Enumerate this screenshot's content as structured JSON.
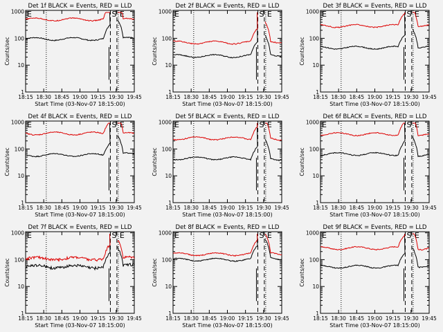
{
  "background": "#f2f2f2",
  "colors": {
    "events": "#000000",
    "lld": "#dd0000",
    "axis": "#000000"
  },
  "chart_data": [
    {
      "type": "line",
      "title": "Det 1f BLACK = Events, RED = LLD",
      "xlabel": "Start Time (03-Nov-07 18:15:00)",
      "ylabel": "Counts/sec",
      "xticks": [
        "18:15",
        "18:30",
        "18:45",
        "19:00",
        "19:15",
        "19:30",
        "19:45"
      ],
      "yticks": [
        "1",
        "10",
        "100",
        "1000"
      ],
      "yscale": "log",
      "ylim": [
        1,
        1100
      ],
      "markers": [
        "E",
        "S",
        "E"
      ],
      "series": [
        {
          "name": "BLACK = Events",
          "level_pre": 95,
          "level_post": 100
        },
        {
          "name": "RED = LLD",
          "level_pre": 510,
          "level_post": 500
        }
      ]
    },
    {
      "type": "line",
      "title": "Det 2f BLACK = Events, RED = LLD",
      "xlabel": "Start Time (03-Nov-07 18:15:00)",
      "ylabel": "Counts/sec",
      "xticks": [
        "18:15",
        "18:30",
        "18:45",
        "19:00",
        "19:15",
        "19:30",
        "19:45"
      ],
      "yticks": [
        "1",
        "10",
        "100",
        "1000"
      ],
      "yscale": "log",
      "ylim": [
        1,
        1100
      ],
      "markers": [
        "E",
        "S",
        "E"
      ],
      "series": [
        {
          "name": "BLACK = Events",
          "level_pre": 22,
          "level_post": 24
        },
        {
          "name": "RED = LLD",
          "level_pre": 70,
          "level_post": 75
        }
      ]
    },
    {
      "type": "line",
      "title": "Det 3f BLACK = Events, RED = LLD",
      "xlabel": "Start Time (03-Nov-07 18:15:00)",
      "ylabel": "Counts/sec",
      "xticks": [
        "18:15",
        "18:30",
        "18:45",
        "19:00",
        "19:15",
        "19:30",
        "19:45"
      ],
      "yticks": [
        "1",
        "10",
        "100",
        "1000"
      ],
      "yscale": "log",
      "ylim": [
        1,
        1100
      ],
      "markers": [
        "E",
        "S",
        "E"
      ],
      "series": [
        {
          "name": "BLACK = Events",
          "level_pre": 45,
          "level_post": 48
        },
        {
          "name": "RED = LLD",
          "level_pre": 290,
          "level_post": 300
        }
      ]
    },
    {
      "type": "line",
      "title": "Det 4f BLACK = Events, RED = LLD",
      "xlabel": "Start Time (03-Nov-07 18:15:00)",
      "ylabel": "Counts/sec",
      "xticks": [
        "18:15",
        "18:30",
        "18:45",
        "19:00",
        "19:15",
        "19:30",
        "19:45"
      ],
      "yticks": [
        "1",
        "10",
        "100",
        "1000"
      ],
      "yscale": "log",
      "ylim": [
        1,
        1100
      ],
      "markers": [
        "E",
        "S",
        "E"
      ],
      "series": [
        {
          "name": "BLACK = Events",
          "level_pre": 60,
          "level_post": 65
        },
        {
          "name": "RED = LLD",
          "level_pre": 380,
          "level_post": 370
        }
      ]
    },
    {
      "type": "line",
      "title": "Det 5f BLACK = Events, RED = LLD",
      "xlabel": "Start Time (03-Nov-07 18:15:00)",
      "ylabel": "Counts/sec",
      "xticks": [
        "18:15",
        "18:30",
        "18:45",
        "19:00",
        "19:15",
        "19:30",
        "19:45"
      ],
      "yticks": [
        "1",
        "10",
        "100",
        "1000"
      ],
      "yscale": "log",
      "ylim": [
        1,
        1100
      ],
      "markers": [
        "E",
        "S",
        "E"
      ],
      "series": [
        {
          "name": "BLACK = Events",
          "level_pre": 45,
          "level_post": 42
        },
        {
          "name": "RED = LLD",
          "level_pre": 250,
          "level_post": 240
        }
      ]
    },
    {
      "type": "line",
      "title": "Det 6f BLACK = Events, RED = LLD",
      "xlabel": "Start Time (03-Nov-07 18:15:00)",
      "ylabel": "Counts/sec",
      "xticks": [
        "18:15",
        "18:30",
        "18:45",
        "19:00",
        "19:15",
        "19:30",
        "19:45"
      ],
      "yticks": [
        "1",
        "10",
        "100",
        "1000"
      ],
      "yscale": "log",
      "ylim": [
        1,
        1100
      ],
      "markers": [
        "E",
        "S",
        "E"
      ],
      "series": [
        {
          "name": "BLACK = Events",
          "level_pre": 65,
          "level_post": 60
        },
        {
          "name": "RED = LLD",
          "level_pre": 360,
          "level_post": 350
        }
      ]
    },
    {
      "type": "line",
      "title": "Det 7f BLACK = Events, RED = LLD",
      "xlabel": "Start Time (03-Nov-07 18:15:00)",
      "ylabel": "Counts/sec",
      "xticks": [
        "18:15",
        "18:30",
        "18:45",
        "19:00",
        "19:15",
        "19:30",
        "19:45"
      ],
      "yticks": [
        "1",
        "10",
        "100",
        "1000"
      ],
      "yscale": "log",
      "ylim": [
        1,
        1100
      ],
      "markers": [
        "E",
        "S",
        "E"
      ],
      "series": [
        {
          "name": "BLACK = Events",
          "level_pre": 55,
          "level_post": 60
        },
        {
          "name": "RED = LLD",
          "level_pre": 110,
          "level_post": 115
        }
      ]
    },
    {
      "type": "line",
      "title": "Det 8f BLACK = Events, RED = LLD",
      "xlabel": "Start Time (03-Nov-07 18:15:00)",
      "ylabel": "Counts/sec",
      "xticks": [
        "18:15",
        "18:30",
        "18:45",
        "19:00",
        "19:15",
        "19:30",
        "19:45"
      ],
      "yticks": [
        "1",
        "10",
        "100",
        "1000"
      ],
      "yscale": "log",
      "ylim": [
        1,
        1100
      ],
      "markers": [
        "E",
        "S",
        "E"
      ],
      "series": [
        {
          "name": "BLACK = Events",
          "level_pre": 100,
          "level_post": 110
        },
        {
          "name": "RED = LLD",
          "level_pre": 160,
          "level_post": 170
        }
      ]
    },
    {
      "type": "line",
      "title": "Det 9f BLACK = Events, RED = LLD",
      "xlabel": "Start Time (03-Nov-07 18:15:00)",
      "ylabel": "Counts/sec",
      "xticks": [
        "18:15",
        "18:30",
        "18:45",
        "19:00",
        "19:15",
        "19:30",
        "19:45"
      ],
      "yticks": [
        "1",
        "10",
        "100",
        "1000"
      ],
      "yscale": "log",
      "ylim": [
        1,
        1100
      ],
      "markers": [
        "E",
        "S",
        "E"
      ],
      "series": [
        {
          "name": "BLACK = Events",
          "level_pre": 55,
          "level_post": 58
        },
        {
          "name": "RED = LLD",
          "level_pre": 270,
          "level_post": 260
        }
      ]
    }
  ]
}
